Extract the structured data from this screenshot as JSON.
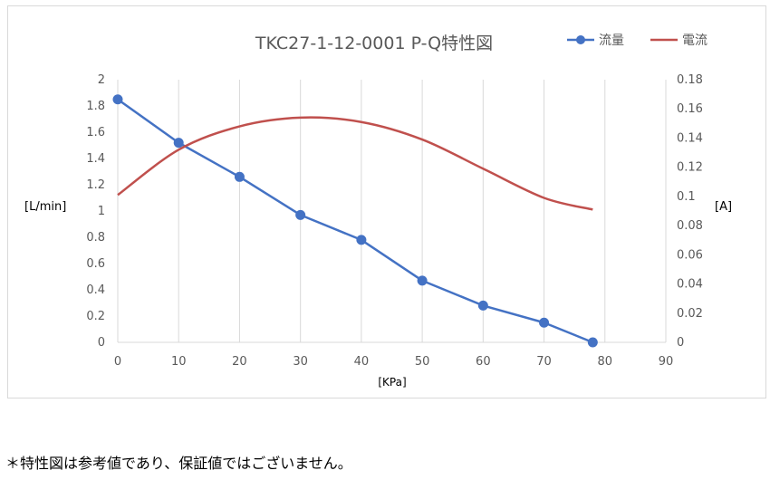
{
  "footnote": "＊特性図は参考値であり、保証値ではございません。",
  "colors": {
    "flow": "#4472C4",
    "current": "#C0504D",
    "grid": "#d9d9d9",
    "text": "#595959"
  },
  "chart_data": {
    "type": "line",
    "title": "TKC27-1-12-0001 P-Q特性図",
    "xlabel": "[KPa]",
    "ylabel": "[L/min]",
    "y2label": "[A]",
    "xlim": [
      0,
      90
    ],
    "ylim": [
      0,
      2
    ],
    "y2lim": [
      0,
      0.18
    ],
    "x_ticks": [
      "0",
      "10",
      "20",
      "30",
      "40",
      "50",
      "60",
      "70",
      "80",
      "90"
    ],
    "y_ticks": [
      "0",
      "0.2",
      "0.4",
      "0.6",
      "0.8",
      "1",
      "1.2",
      "1.4",
      "1.6",
      "1.8",
      "2"
    ],
    "y2_ticks": [
      "0",
      "0.02",
      "0.04",
      "0.06",
      "0.08",
      "0.1",
      "0.12",
      "0.14",
      "0.16",
      "0.18"
    ],
    "grid": "vertical",
    "legend_position": "top-right",
    "series": [
      {
        "name": "流量",
        "axis": "left",
        "markers": true,
        "x": [
          0,
          10,
          20,
          30,
          40,
          50,
          60,
          70,
          78
        ],
        "values": [
          1.85,
          1.52,
          1.26,
          0.97,
          0.78,
          0.47,
          0.28,
          0.15,
          0
        ]
      },
      {
        "name": "電流",
        "axis": "right",
        "markers": false,
        "x": [
          0,
          10,
          20,
          30,
          40,
          50,
          60,
          70,
          78
        ],
        "values": [
          0.101,
          0.132,
          0.148,
          0.154,
          0.151,
          0.139,
          0.119,
          0.099,
          0.091
        ]
      }
    ]
  }
}
